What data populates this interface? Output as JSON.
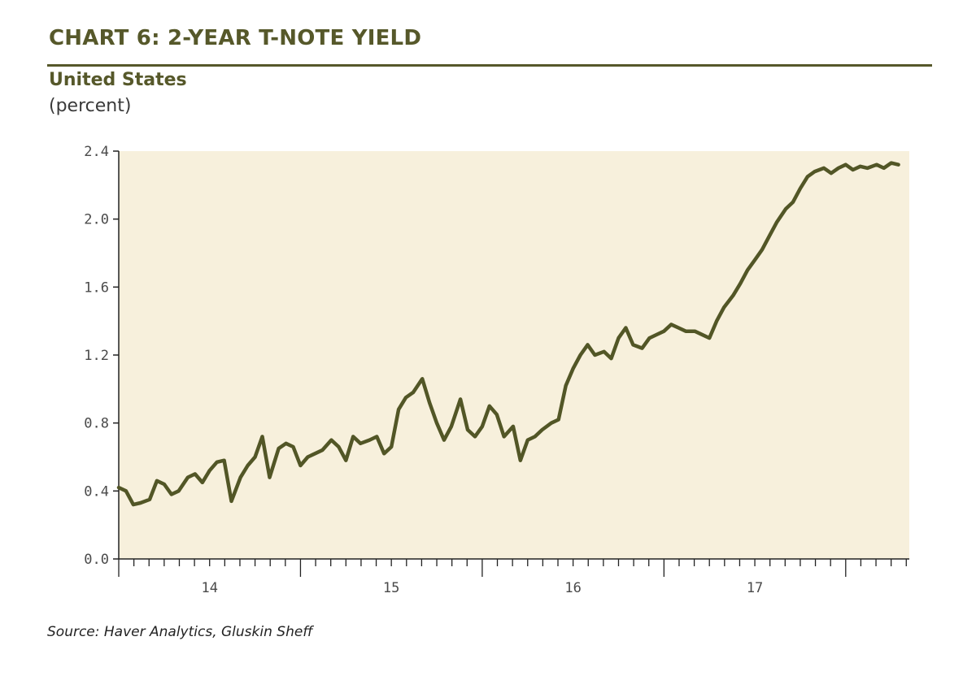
{
  "header": {
    "title": "CHART 6: 2-YEAR T-NOTE YIELD",
    "subtitle": "United States",
    "unit": "(percent)"
  },
  "footer": {
    "source": "Source: Haver Analytics, Gluskin Sheff"
  },
  "colors": {
    "accent": "#56582a",
    "line": "#525626",
    "plot_background": "#f7f0dc"
  },
  "chart_data": {
    "type": "line",
    "title": "CHART 6: 2-YEAR T-NOTE YIELD",
    "xlabel": "",
    "ylabel": "(percent)",
    "xlim": [
      2013.5,
      2017.85
    ],
    "ylim": [
      0.0,
      2.4
    ],
    "yticks": [
      0.0,
      0.4,
      0.8,
      1.2,
      1.6,
      2.0,
      2.4
    ],
    "ytick_labels": [
      "0.0",
      "0.4",
      "0.8",
      "1.2",
      "1.6",
      "2.0",
      "2.4"
    ],
    "xticks": [
      2014.0,
      2015.0,
      2016.0,
      2017.0
    ],
    "xtick_labels": [
      "14",
      "15",
      "16",
      "17"
    ],
    "grid": false,
    "legend": "none",
    "series": [
      {
        "name": "",
        "x": [
          2013.5,
          2013.54,
          2013.58,
          2013.62,
          2013.67,
          2013.71,
          2013.75,
          2013.79,
          2013.83,
          2013.88,
          2013.92,
          2013.96,
          2014.0,
          2014.04,
          2014.08,
          2014.12,
          2014.17,
          2014.21,
          2014.25,
          2014.29,
          2014.33,
          2014.38,
          2014.42,
          2014.46,
          2014.5,
          2014.54,
          2014.58,
          2014.62,
          2014.67,
          2014.71,
          2014.75,
          2014.79,
          2014.83,
          2014.88,
          2014.92,
          2014.96,
          2015.0,
          2015.04,
          2015.08,
          2015.12,
          2015.17,
          2015.21,
          2015.25,
          2015.29,
          2015.33,
          2015.38,
          2015.42,
          2015.46,
          2015.5,
          2015.54,
          2015.58,
          2015.62,
          2015.67,
          2015.71,
          2015.75,
          2015.79,
          2015.83,
          2015.88,
          2015.92,
          2015.96,
          2016.0,
          2016.04,
          2016.08,
          2016.12,
          2016.17,
          2016.21,
          2016.25,
          2016.29,
          2016.33,
          2016.38,
          2016.42,
          2016.46,
          2016.5,
          2016.54,
          2016.58,
          2016.62,
          2016.67,
          2016.71,
          2016.75,
          2016.79,
          2016.83,
          2016.88,
          2016.92,
          2016.96,
          2017.0,
          2017.04,
          2017.08,
          2017.12,
          2017.17,
          2017.21,
          2017.25,
          2017.29,
          2017.33,
          2017.38,
          2017.42,
          2017.46,
          2017.5,
          2017.54,
          2017.58,
          2017.62,
          2017.67,
          2017.71,
          2017.75,
          2017.79
        ],
        "values": [
          0.42,
          0.4,
          0.32,
          0.33,
          0.35,
          0.46,
          0.44,
          0.38,
          0.4,
          0.48,
          0.5,
          0.45,
          0.52,
          0.57,
          0.58,
          0.34,
          0.48,
          0.55,
          0.6,
          0.72,
          0.48,
          0.65,
          0.68,
          0.66,
          0.55,
          0.6,
          0.62,
          0.64,
          0.7,
          0.66,
          0.58,
          0.72,
          0.68,
          0.7,
          0.72,
          0.62,
          0.66,
          0.88,
          0.95,
          0.98,
          1.06,
          0.92,
          0.8,
          0.7,
          0.78,
          0.94,
          0.76,
          0.72,
          0.78,
          0.9,
          0.85,
          0.72,
          0.78,
          0.58,
          0.7,
          0.72,
          0.76,
          0.8,
          0.82,
          1.02,
          1.12,
          1.2,
          1.26,
          1.2,
          1.22,
          1.18,
          1.3,
          1.36,
          1.26,
          1.24,
          1.3,
          1.32,
          1.34,
          1.38,
          1.36,
          1.34,
          1.34,
          1.32,
          1.3,
          1.4,
          1.48,
          1.55,
          1.62,
          1.7,
          1.76,
          1.82,
          1.9,
          1.98,
          2.06,
          2.1,
          2.18,
          2.25,
          2.28,
          2.3,
          2.27,
          2.3,
          2.32,
          2.29,
          2.31,
          2.3,
          2.32,
          2.3,
          2.33,
          2.32
        ]
      }
    ]
  }
}
